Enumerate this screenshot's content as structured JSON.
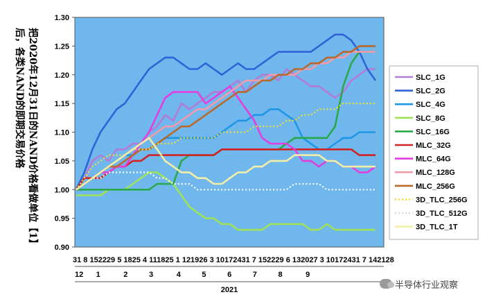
{
  "caption_lines": [
    "把2020年12月31日的NAND价格看做单位【1】",
    "后，各类NAND的即期交易价格"
  ],
  "watermark_text": "半导体行业观察",
  "chart_data": {
    "type": "line",
    "title": "",
    "xlabel": "2021",
    "ylabel": "",
    "ylim": [
      0.9,
      1.3
    ],
    "yticks": [
      "0.90",
      "0.95",
      "1.00",
      "1.05",
      "1.10",
      "1.15",
      "1.20",
      "1.25",
      "1.30"
    ],
    "grid": false,
    "legend_position": "right",
    "plot_background": "#6fb7ec",
    "x_days": [
      "31",
      "8",
      "15",
      "22",
      "29",
      "5",
      "18",
      "25",
      "4",
      "11",
      "18",
      "25",
      "1",
      "12",
      "19",
      "26",
      "3",
      "10",
      "17",
      "24",
      "31",
      "7",
      "15",
      "22",
      "29",
      "6",
      "13",
      "20",
      "27",
      "3",
      "10",
      "17",
      "24",
      "31",
      "7",
      "14",
      "21",
      "28"
    ],
    "x_day_labels_row": "31 8 152229 5 1825 4 111825 1 121926 3 10172431 7 152229 6 132027 3 10172431 7 142128",
    "x_months": [
      "12",
      "1",
      "2",
      "3",
      "4",
      "5",
      "6",
      "7",
      "8",
      "9"
    ],
    "x_month_labels_row": "12      1           2          3           4          5          6          7          8           9",
    "series": [
      {
        "name": "SLC_1G",
        "color": "#b27cd6",
        "dash": "solid",
        "values": [
          1.0,
          1.02,
          1.05,
          1.06,
          1.05,
          1.07,
          1.07,
          1.08,
          1.08,
          1.1,
          1.11,
          1.13,
          1.12,
          1.15,
          1.14,
          1.15,
          1.16,
          1.17,
          1.17,
          1.18,
          1.19,
          1.17,
          1.19,
          1.2,
          1.2,
          1.19,
          1.21,
          1.2,
          1.19,
          1.18,
          1.18,
          1.17,
          1.16,
          1.17,
          1.19,
          1.2,
          1.21,
          1.21
        ]
      },
      {
        "name": "SLC_2G",
        "color": "#2f63d6",
        "dash": "solid",
        "values": [
          1.0,
          1.03,
          1.07,
          1.1,
          1.12,
          1.14,
          1.15,
          1.17,
          1.19,
          1.21,
          1.22,
          1.23,
          1.23,
          1.22,
          1.21,
          1.21,
          1.22,
          1.21,
          1.2,
          1.21,
          1.22,
          1.21,
          1.21,
          1.22,
          1.23,
          1.24,
          1.24,
          1.24,
          1.24,
          1.24,
          1.25,
          1.26,
          1.27,
          1.27,
          1.26,
          1.24,
          1.21,
          1.19
        ]
      },
      {
        "name": "SLC_4G",
        "color": "#1f97e6",
        "dash": "solid",
        "values": [
          1.0,
          1.01,
          1.02,
          1.03,
          1.04,
          1.05,
          1.06,
          1.06,
          1.07,
          1.07,
          1.08,
          1.09,
          1.09,
          1.09,
          1.09,
          1.09,
          1.09,
          1.09,
          1.1,
          1.11,
          1.12,
          1.12,
          1.13,
          1.13,
          1.14,
          1.14,
          1.13,
          1.12,
          1.09,
          1.08,
          1.07,
          1.07,
          1.08,
          1.09,
          1.09,
          1.1,
          1.1,
          1.1
        ]
      },
      {
        "name": "SLC_8G",
        "color": "#9fe25a",
        "dash": "solid",
        "values": [
          0.99,
          0.99,
          0.99,
          0.99,
          1.0,
          1.0,
          1.0,
          1.01,
          1.02,
          1.03,
          1.03,
          1.02,
          1.01,
          0.99,
          0.97,
          0.96,
          0.95,
          0.95,
          0.94,
          0.94,
          0.93,
          0.93,
          0.93,
          0.93,
          0.94,
          0.94,
          0.94,
          0.94,
          0.94,
          0.93,
          0.93,
          0.94,
          0.93,
          0.93,
          0.93,
          0.93,
          0.93,
          0.93
        ]
      },
      {
        "name": "SLC_16G",
        "color": "#2aa84a",
        "dash": "solid",
        "values": [
          1.0,
          1.0,
          1.0,
          1.0,
          1.0,
          1.0,
          1.0,
          1.0,
          1.0,
          1.0,
          1.01,
          1.01,
          1.01,
          1.05,
          1.06,
          1.06,
          1.06,
          1.06,
          1.07,
          1.07,
          1.07,
          1.07,
          1.07,
          1.07,
          1.07,
          1.07,
          1.08,
          1.09,
          1.09,
          1.09,
          1.09,
          1.09,
          1.11,
          1.18,
          1.22,
          1.24,
          1.24,
          1.24
        ]
      },
      {
        "name": "MLC_32G",
        "color": "#d22222",
        "dash": "solid",
        "values": [
          1.0,
          1.02,
          1.02,
          1.02,
          1.03,
          1.04,
          1.04,
          1.05,
          1.05,
          1.06,
          1.06,
          1.06,
          1.06,
          1.06,
          1.06,
          1.06,
          1.06,
          1.06,
          1.07,
          1.07,
          1.07,
          1.07,
          1.07,
          1.07,
          1.07,
          1.07,
          1.07,
          1.07,
          1.07,
          1.07,
          1.07,
          1.07,
          1.07,
          1.07,
          1.07,
          1.06,
          1.06,
          1.06
        ]
      },
      {
        "name": "MLC_64G",
        "color": "#e43de0",
        "dash": "solid",
        "values": [
          1.0,
          1.01,
          1.02,
          1.03,
          1.03,
          1.04,
          1.04,
          1.06,
          1.08,
          1.1,
          1.13,
          1.16,
          1.17,
          1.17,
          1.17,
          1.17,
          1.15,
          1.16,
          1.17,
          1.18,
          1.16,
          1.14,
          1.12,
          1.09,
          1.08,
          1.08,
          1.08,
          1.07,
          1.05,
          1.05,
          1.04,
          1.05,
          1.05,
          1.04,
          1.04,
          1.03,
          1.03,
          1.04
        ]
      },
      {
        "name": "MLC_128G",
        "color": "#f59aa7",
        "dash": "solid",
        "values": [
          1.0,
          1.01,
          1.02,
          1.03,
          1.04,
          1.05,
          1.06,
          1.07,
          1.08,
          1.09,
          1.1,
          1.11,
          1.11,
          1.12,
          1.13,
          1.14,
          1.14,
          1.15,
          1.16,
          1.17,
          1.18,
          1.19,
          1.19,
          1.19,
          1.2,
          1.2,
          1.2,
          1.2,
          1.21,
          1.21,
          1.22,
          1.22,
          1.23,
          1.23,
          1.24,
          1.24,
          1.24,
          1.24
        ]
      },
      {
        "name": "MLC_256G",
        "color": "#b86a2c",
        "dash": "solid",
        "values": [
          1.0,
          1.01,
          1.02,
          1.03,
          1.04,
          1.04,
          1.05,
          1.06,
          1.07,
          1.07,
          1.08,
          1.09,
          1.1,
          1.11,
          1.11,
          1.12,
          1.13,
          1.14,
          1.15,
          1.16,
          1.17,
          1.17,
          1.18,
          1.19,
          1.19,
          1.2,
          1.2,
          1.21,
          1.21,
          1.22,
          1.22,
          1.23,
          1.23,
          1.24,
          1.24,
          1.25,
          1.25,
          1.25
        ]
      },
      {
        "name": "3D_TLC_256G",
        "color": "#f4df3a",
        "dash": "dotted",
        "values": [
          1.0,
          1.02,
          1.04,
          1.05,
          1.06,
          1.06,
          1.06,
          1.07,
          1.07,
          1.07,
          1.08,
          1.08,
          1.08,
          1.09,
          1.09,
          1.09,
          1.09,
          1.09,
          1.1,
          1.1,
          1.1,
          1.1,
          1.11,
          1.11,
          1.11,
          1.11,
          1.12,
          1.12,
          1.13,
          1.13,
          1.14,
          1.14,
          1.14,
          1.15,
          1.15,
          1.15,
          1.15,
          1.15
        ]
      },
      {
        "name": "3D_TLC_512G",
        "color": "#ffffff",
        "dash": "dotted",
        "values": [
          1.0,
          1.01,
          1.02,
          1.02,
          1.03,
          1.03,
          1.03,
          1.03,
          1.03,
          1.03,
          1.02,
          1.02,
          1.01,
          1.01,
          1.01,
          1.0,
          1.0,
          1.0,
          1.0,
          1.0,
          1.0,
          1.0,
          1.0,
          1.0,
          1.0,
          1.0,
          1.0,
          1.01,
          1.01,
          1.01,
          1.01,
          1.0,
          1.0,
          1.0,
          1.0,
          1.0,
          1.0,
          1.0
        ]
      },
      {
        "name": "3D_TLC_1T",
        "color": "#f3efa6",
        "dash": "solid",
        "values": [
          1.0,
          1.01,
          1.02,
          1.03,
          1.04,
          1.05,
          1.06,
          1.07,
          1.08,
          1.09,
          1.07,
          1.05,
          1.04,
          1.03,
          1.03,
          1.02,
          1.02,
          1.01,
          1.01,
          1.02,
          1.03,
          1.03,
          1.04,
          1.04,
          1.05,
          1.05,
          1.05,
          1.06,
          1.06,
          1.06,
          1.06,
          1.05,
          1.05,
          1.04,
          1.04,
          1.04,
          1.04,
          1.04
        ]
      }
    ]
  }
}
